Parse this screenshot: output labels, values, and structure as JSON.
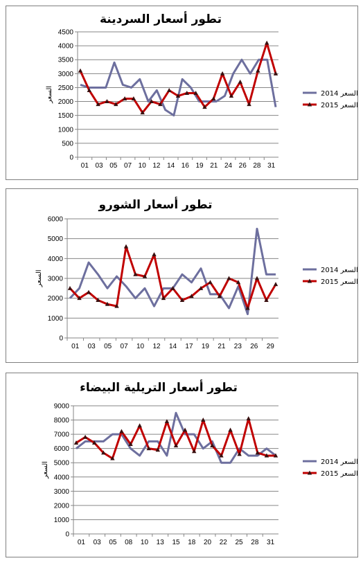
{
  "colors": {
    "series_2014": "#6d6f9e",
    "series_2015": "#c00000",
    "marker_2015": "#3a1010",
    "axis": "#868686",
    "grid": "#868686"
  },
  "chart_data": [
    {
      "type": "line",
      "title": "تطور أسعار السردينة",
      "ylabel": "السعر",
      "ylim": [
        0,
        4500
      ],
      "yticks": [
        0,
        500,
        1000,
        1500,
        2000,
        2500,
        3000,
        3500,
        4000,
        4500
      ],
      "x_count": 31,
      "x_tick_labels": [
        "01",
        "03",
        "05",
        "07",
        "10",
        "12",
        "14",
        "16",
        "19",
        "21",
        "24",
        "26",
        "28",
        "31"
      ],
      "legend_position": "right",
      "series": [
        {
          "name": "2014 السعر",
          "marker": "none",
          "values": [
            2600,
            2500,
            2500,
            2500,
            3400,
            2600,
            2500,
            2800,
            2000,
            2400,
            1700,
            1500,
            2800,
            2500,
            2000,
            2000,
            2000,
            2200,
            3000,
            3500,
            3000,
            3500,
            3500,
            1800
          ]
        },
        {
          "name": "2015 السعر",
          "marker": "triangle",
          "values": [
            3100,
            2400,
            1900,
            2000,
            1900,
            2100,
            2100,
            1600,
            2000,
            1900,
            2400,
            2200,
            2300,
            2300,
            1800,
            2100,
            3000,
            2200,
            2700,
            1900,
            3100,
            4100,
            3000
          ]
        }
      ]
    },
    {
      "type": "line",
      "title": "تطور أسعار الشورو",
      "ylabel": "السعر",
      "ylim": [
        0,
        6000
      ],
      "yticks": [
        0,
        1000,
        2000,
        3000,
        4000,
        5000,
        6000
      ],
      "x_count": 29,
      "x_tick_labels": [
        "01",
        "03",
        "05",
        "07",
        "10",
        "12",
        "14",
        "17",
        "19",
        "21",
        "23",
        "26",
        "29"
      ],
      "legend_position": "right",
      "series": [
        {
          "name": "2014 السعر",
          "marker": "none",
          "values": [
            2000,
            2500,
            3800,
            3200,
            2500,
            3100,
            2600,
            2000,
            2500,
            1600,
            2500,
            2500,
            3200,
            2800,
            3500,
            2200,
            2200,
            1500,
            2600,
            1200,
            5500,
            3200,
            3200
          ]
        },
        {
          "name": "2015 السعر",
          "marker": "triangle",
          "values": [
            2500,
            2000,
            2300,
            1900,
            1700,
            1600,
            4600,
            3200,
            3100,
            4200,
            2000,
            2500,
            1900,
            2100,
            2500,
            2800,
            2100,
            3000,
            2800,
            1500,
            3000,
            1900,
            2700
          ]
        }
      ]
    },
    {
      "type": "line",
      "title": "تطور أسعار التريلية البيضاء",
      "ylabel": "السعر",
      "ylim": [
        0,
        9000
      ],
      "yticks": [
        0,
        1000,
        2000,
        3000,
        4000,
        5000,
        6000,
        7000,
        8000,
        9000
      ],
      "x_count": 31,
      "x_tick_labels": [
        "01",
        "03",
        "05",
        "08",
        "10",
        "13",
        "15",
        "18",
        "20",
        "22",
        "25",
        "28",
        "31"
      ],
      "legend_position": "right",
      "series": [
        {
          "name": "2014 السعر",
          "marker": "none",
          "values": [
            6000,
            6500,
            6500,
            6500,
            7000,
            7000,
            6000,
            5500,
            6500,
            6500,
            5500,
            8500,
            7000,
            7000,
            6000,
            6500,
            5000,
            5000,
            6000,
            5500,
            5500,
            6000,
            5500
          ]
        },
        {
          "name": "2015 السعر",
          "marker": "triangle",
          "values": [
            6400,
            6800,
            6400,
            5700,
            5300,
            7200,
            6300,
            7600,
            6000,
            5900,
            7900,
            6200,
            7300,
            5800,
            8000,
            6200,
            5500,
            7300,
            5600,
            8100,
            5700,
            5500,
            5500
          ]
        }
      ]
    }
  ]
}
